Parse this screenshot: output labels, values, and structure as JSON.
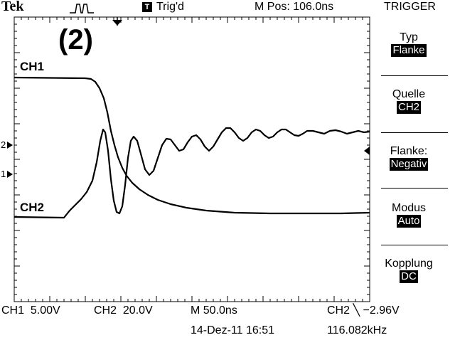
{
  "header": {
    "brand": "Tek",
    "acq_symbol": "⎍",
    "trigger_state_badge": "T",
    "trigger_state": "Trig'd",
    "m_pos": "M Pos: 106.0ns",
    "menu_title": "TRIGGER"
  },
  "overlay_label": "(2)",
  "channels": {
    "ch1_label": "CH1",
    "ch2_label": "CH2",
    "ch1_marker": "1",
    "ch2_marker": "2"
  },
  "trigger_menu": [
    {
      "label": "Typ",
      "value": "Flanke"
    },
    {
      "label": "Quelle",
      "value": "CH2"
    },
    {
      "label": "Flanke:",
      "value": "Negativ"
    },
    {
      "label": "Modus",
      "value": "Auto"
    },
    {
      "label": "Kopplung",
      "value": "DC"
    }
  ],
  "footer": {
    "ch1_scale_name": "CH1",
    "ch1_scale": "5.00V",
    "ch2_scale_name": "CH2",
    "ch2_scale": "20.0V",
    "timebase": "M 50.0ns",
    "trigger_readout": "CH2 ╲ −2.96V",
    "datetime": "14-Dez-11 16:51",
    "frequency": "116.082kHz"
  },
  "colors": {
    "background": "#ffffff",
    "foreground": "#000000"
  }
}
